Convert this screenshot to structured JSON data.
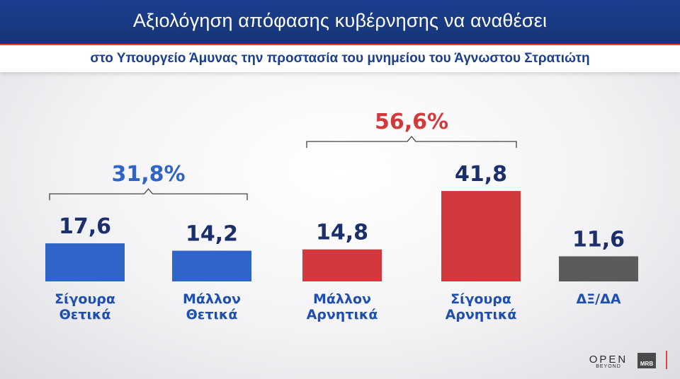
{
  "header": {
    "title": "Αξιολόγηση απόφασης κυβέρνησης να αναθέσει",
    "subtitle": "στο Υπουργείο Άμυνας την προστασία του μνημείου του Άγνωστου Στρατιώτη"
  },
  "chart_data": {
    "type": "bar",
    "categories": [
      "Σίγουρα Θετικά",
      "Μάλλον Θετικά",
      "Μάλλον Αρνητικά",
      "Σίγουρα Αρνητικά",
      "ΔΞ/ΔΑ"
    ],
    "category_lines": [
      [
        "Σίγουρα",
        "Θετικά"
      ],
      [
        "Μάλλον",
        "Θετικά"
      ],
      [
        "Μάλλον",
        "Αρνητικά"
      ],
      [
        "Σίγουρα",
        "Αρνητικά"
      ],
      [
        "ΔΞ/ΔΑ"
      ]
    ],
    "values": [
      17.6,
      14.2,
      14.8,
      41.8,
      11.6
    ],
    "value_labels": [
      "17,6",
      "14,2",
      "14,8",
      "41,8",
      "11,6"
    ],
    "colors": [
      "#2f64c8",
      "#2f64c8",
      "#d2393c",
      "#d2393c",
      "#5b5b5b"
    ],
    "groups": [
      {
        "label": "31,8%",
        "from": 0,
        "to": 1,
        "color": "#2f64c8"
      },
      {
        "label": "56,6%",
        "from": 2,
        "to": 3,
        "color": "#d2393c"
      }
    ]
  },
  "logos": {
    "open": "OPEN",
    "open_sub": "BEYOND",
    "mrb": "MRB"
  }
}
